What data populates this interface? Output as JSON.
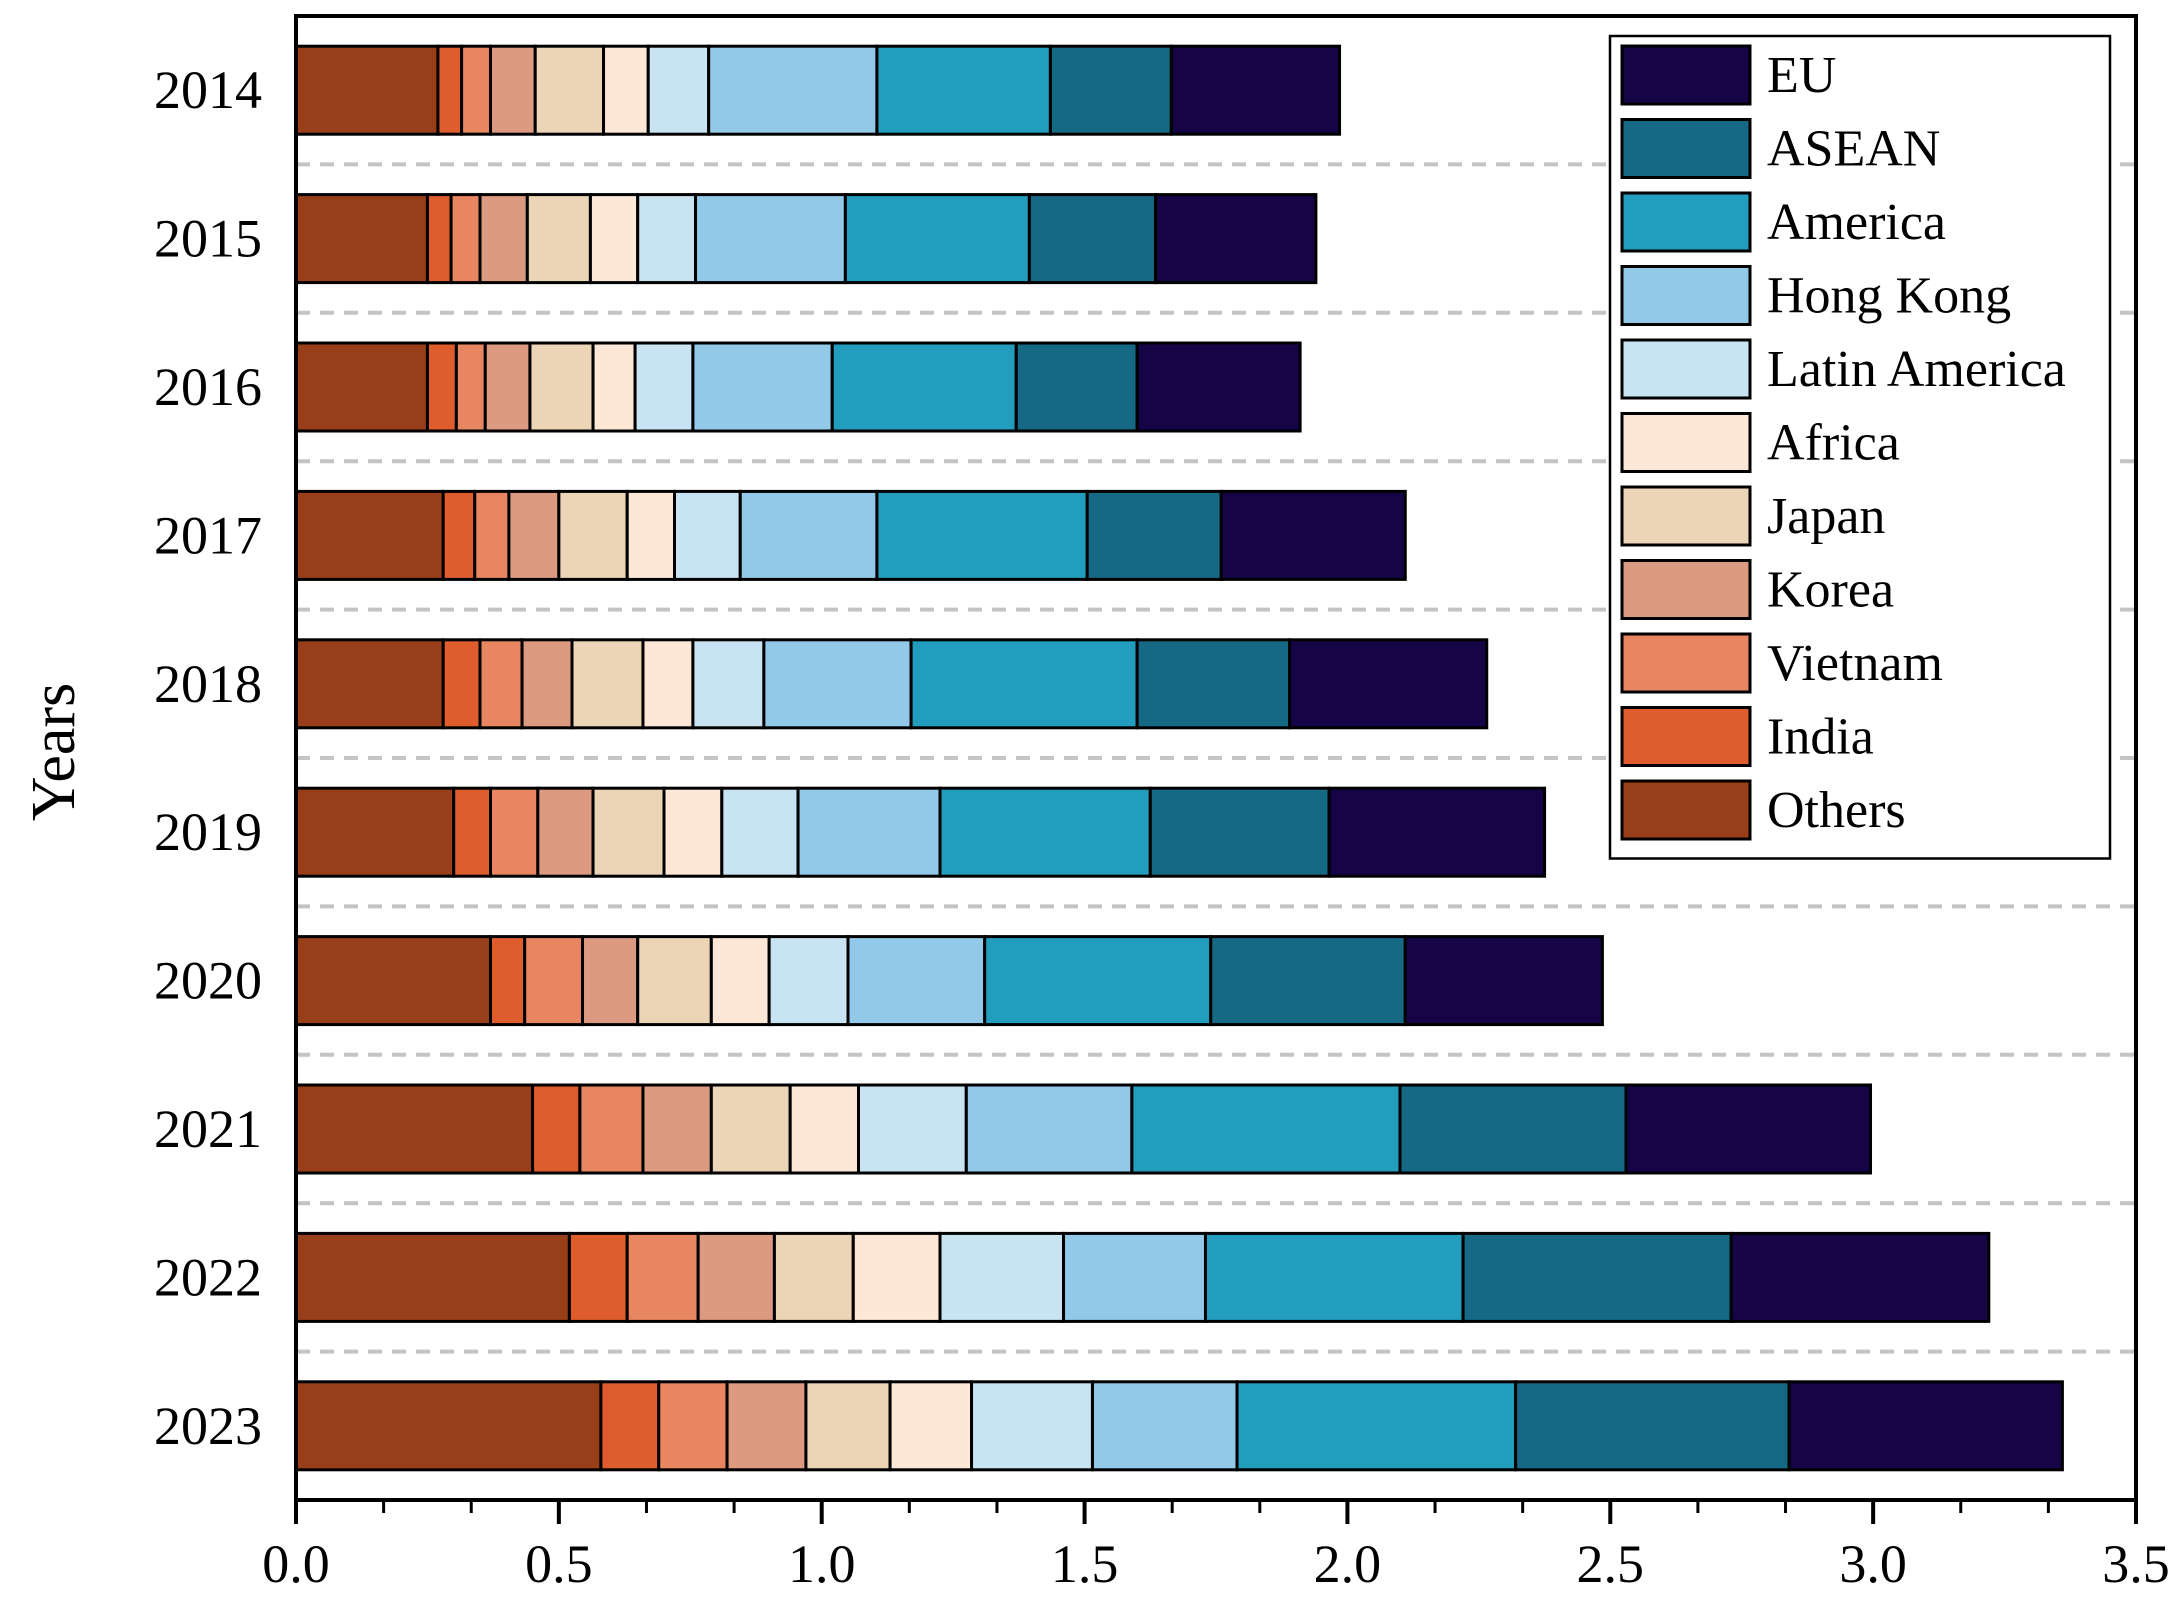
{
  "chart_data": {
    "type": "bar",
    "orientation": "horizontal",
    "stacked": true,
    "title": "",
    "xlabel": "",
    "ylabel": "Years",
    "xlim": [
      0,
      3.5
    ],
    "x_ticks": [
      "0.0",
      "0.5",
      "1.0",
      "1.5",
      "2.0",
      "2.5",
      "3.0",
      "3.5"
    ],
    "x_tick_values": [
      0,
      0.5,
      1.0,
      1.5,
      2.0,
      2.5,
      3.0,
      3.5
    ],
    "grid": "dashed horizontal separators between years",
    "legend_position": "top-right",
    "categories": [
      "2014",
      "2015",
      "2016",
      "2017",
      "2018",
      "2019",
      "2020",
      "2021",
      "2022",
      "2023"
    ],
    "series": [
      {
        "name": "Others",
        "color": "#983f1a",
        "values": [
          0.27,
          0.25,
          0.25,
          0.28,
          0.28,
          0.3,
          0.37,
          0.45,
          0.52,
          0.58
        ]
      },
      {
        "name": "India",
        "color": "#df5d2d",
        "values": [
          0.045,
          0.045,
          0.055,
          0.06,
          0.07,
          0.07,
          0.065,
          0.09,
          0.11,
          0.11
        ]
      },
      {
        "name": "Vietnam",
        "color": "#e88662",
        "values": [
          0.055,
          0.055,
          0.055,
          0.065,
          0.08,
          0.09,
          0.11,
          0.12,
          0.135,
          0.13
        ]
      },
      {
        "name": "Korea",
        "color": "#dc9a81",
        "values": [
          0.085,
          0.09,
          0.085,
          0.095,
          0.095,
          0.105,
          0.105,
          0.13,
          0.145,
          0.15
        ]
      },
      {
        "name": "Japan",
        "color": "#ecd4b6",
        "values": [
          0.13,
          0.12,
          0.12,
          0.13,
          0.135,
          0.135,
          0.14,
          0.15,
          0.15,
          0.16
        ]
      },
      {
        "name": "Africa",
        "color": "#fde7d6",
        "values": [
          0.085,
          0.09,
          0.08,
          0.09,
          0.095,
          0.11,
          0.11,
          0.13,
          0.165,
          0.155
        ]
      },
      {
        "name": "Latin America",
        "color": "#c8e4f2",
        "values": [
          0.115,
          0.11,
          0.11,
          0.125,
          0.135,
          0.145,
          0.15,
          0.205,
          0.235,
          0.23
        ]
      },
      {
        "name": "Hong Kong",
        "color": "#92c9e8",
        "values": [
          0.32,
          0.285,
          0.265,
          0.26,
          0.28,
          0.27,
          0.26,
          0.315,
          0.27,
          0.275
        ]
      },
      {
        "name": "America",
        "color": "#229dbd",
        "values": [
          0.33,
          0.35,
          0.35,
          0.4,
          0.43,
          0.4,
          0.43,
          0.51,
          0.49,
          0.53
        ]
      },
      {
        "name": "ASEAN",
        "color": "#166984",
        "values": [
          0.23,
          0.24,
          0.23,
          0.255,
          0.29,
          0.34,
          0.37,
          0.43,
          0.51,
          0.52
        ]
      },
      {
        "name": "EU",
        "color": "#150547",
        "values": [
          0.32,
          0.305,
          0.31,
          0.35,
          0.375,
          0.41,
          0.375,
          0.465,
          0.49,
          0.52
        ]
      }
    ]
  }
}
